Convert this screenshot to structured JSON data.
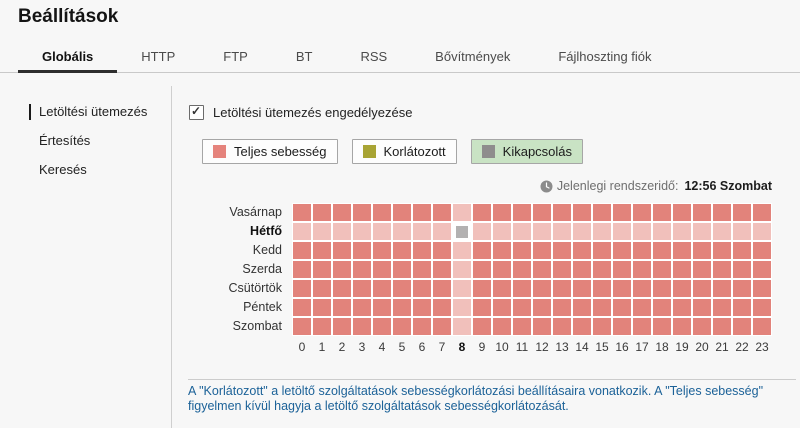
{
  "page": {
    "title": "Beállítások",
    "background": "#f7f7f7"
  },
  "tabs": [
    {
      "id": "globalis",
      "label": "Globális",
      "active": true
    },
    {
      "id": "http",
      "label": "HTTP",
      "active": false
    },
    {
      "id": "ftp",
      "label": "FTP",
      "active": false
    },
    {
      "id": "bt",
      "label": "BT",
      "active": false
    },
    {
      "id": "rss",
      "label": "RSS",
      "active": false
    },
    {
      "id": "bovitmenyek",
      "label": "Bővítmények",
      "active": false
    },
    {
      "id": "fajlhoszting-fiok",
      "label": "Fájlhoszting fiók",
      "active": false
    }
  ],
  "sidebar": {
    "items": [
      {
        "id": "letoltesi-utemezes",
        "label": "Letöltési ütemezés",
        "selected": true
      },
      {
        "id": "ertesites",
        "label": "Értesítés",
        "selected": false
      },
      {
        "id": "kereses",
        "label": "Keresés",
        "selected": false
      }
    ]
  },
  "main": {
    "enable_checkbox": {
      "label": "Letöltési ütemezés engedélyezése",
      "checked": true
    },
    "legend": [
      {
        "id": "teljes-sebesseg",
        "label": "Teljes sebesség",
        "swatch_color": "#e5837c",
        "selected": false,
        "bg": "#fdfdfd"
      },
      {
        "id": "korlatozott",
        "label": "Korlátozott",
        "swatch_color": "#a8a434",
        "selected": false,
        "bg": "#fdfdfd"
      },
      {
        "id": "kikapcsolas",
        "label": "Kikapcsolás",
        "swatch_color": "#8f8d8d",
        "selected": true,
        "bg": "#c9e3c4"
      }
    ],
    "clock": {
      "label": "Jelenlegi rendszeridő:",
      "value": "12:56 Szombat"
    },
    "schedule": {
      "days": [
        "Vasárnap",
        "Hétfő",
        "Kedd",
        "Szerda",
        "Csütörtök",
        "Péntek",
        "Szombat"
      ],
      "hours": [
        "0",
        "1",
        "2",
        "3",
        "4",
        "5",
        "6",
        "7",
        "8",
        "9",
        "10",
        "11",
        "12",
        "13",
        "14",
        "15",
        "16",
        "17",
        "18",
        "19",
        "20",
        "21",
        "22",
        "23"
      ],
      "default_state": "full",
      "overrides": [
        {
          "day_index": 1,
          "hour_index": 8,
          "state": "off"
        }
      ],
      "highlight": {
        "day_index": 1,
        "hour_index": 8
      },
      "colors": {
        "full": "#e2837b",
        "full_highlight": "#f1c0bb",
        "off": "#b3b1b1",
        "grid_line": "#ffffff"
      }
    },
    "footnote": "A \"Korlátozott\" a letöltő szolgáltatások sebességkorlátozási beállításaira vonatkozik. A \"Teljes sebesség\" figyelmen kívül hagyja a letöltő szolgáltatások sebességkorlátozását."
  }
}
